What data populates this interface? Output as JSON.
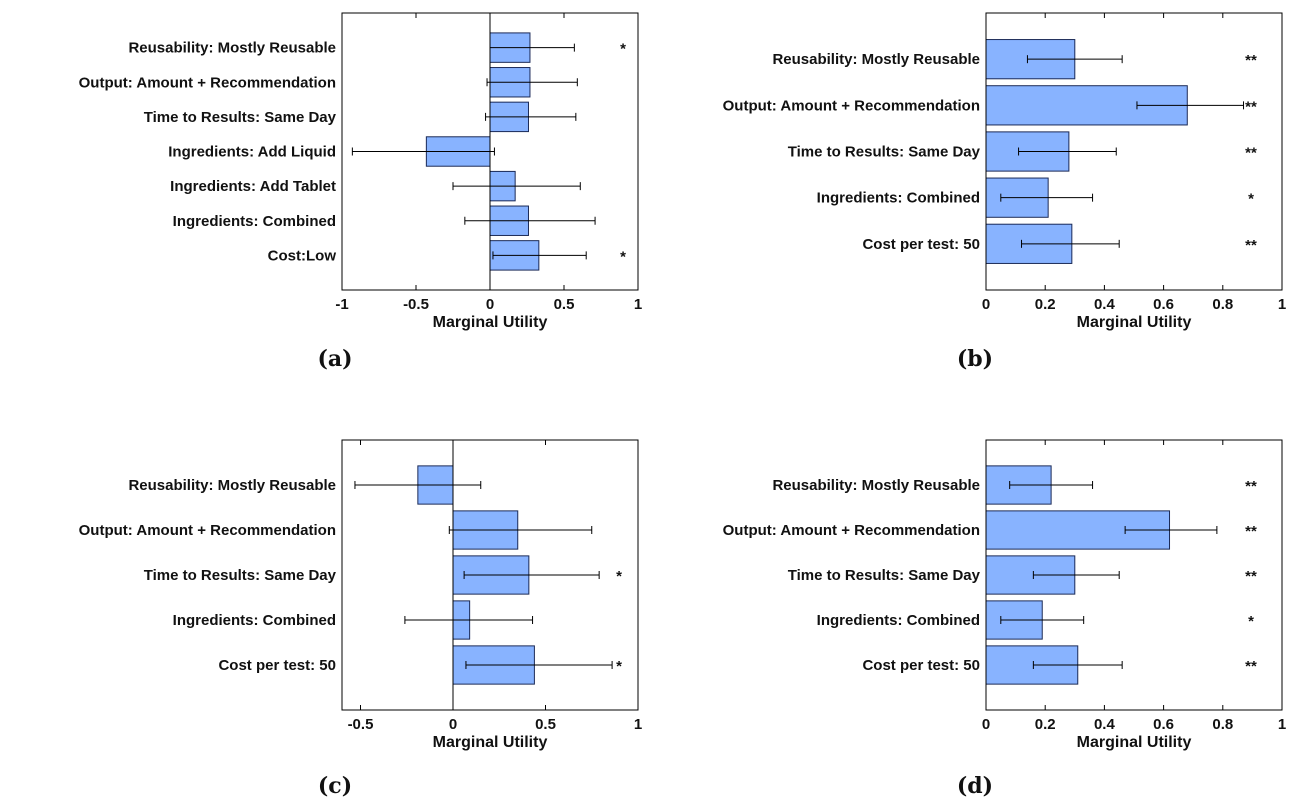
{
  "colors": {
    "bar_fill": "#88b3ff",
    "bar_stroke": "#1b2a57",
    "axis": "#000000",
    "errorbar": "#000000"
  },
  "chart_data": [
    {
      "id": "a",
      "type": "bar",
      "orientation": "horizontal",
      "caption": "(a)",
      "xlabel": "Marginal Utility",
      "xlim": [
        -1,
        1
      ],
      "xticks": [
        -1,
        -0.5,
        0,
        0.5,
        1
      ],
      "xtick_labels": [
        "-1",
        "-0.5",
        "0",
        "0.5",
        "1"
      ],
      "grid": false,
      "categories": [
        "Reusability: Mostly Reusable",
        "Output: Amount + Recommendation",
        "Time to Results: Same Day",
        "Ingredients: Add Liquid",
        "Ingredients: Add Tablet",
        "Ingredients: Combined",
        "Cost:Low"
      ],
      "values": [
        0.27,
        0.27,
        0.26,
        -0.43,
        0.17,
        0.26,
        0.33
      ],
      "error_low": [
        0.0,
        -0.02,
        -0.03,
        -0.93,
        -0.25,
        -0.17,
        0.02
      ],
      "error_high": [
        0.57,
        0.59,
        0.58,
        0.03,
        0.61,
        0.71,
        0.65
      ],
      "significance": [
        "*",
        "",
        "",
        "",
        "",
        "",
        "*"
      ]
    },
    {
      "id": "b",
      "type": "bar",
      "orientation": "horizontal",
      "caption": "(b)",
      "xlabel": "Marginal Utility",
      "xlim": [
        0,
        1
      ],
      "xticks": [
        0,
        0.2,
        0.4,
        0.6,
        0.8,
        1
      ],
      "xtick_labels": [
        "0",
        "0.2",
        "0.4",
        "0.6",
        "0.8",
        "1"
      ],
      "grid": false,
      "categories": [
        "Reusability: Mostly Reusable",
        "Output: Amount + Recommendation",
        "Time to Results: Same Day",
        "Ingredients: Combined",
        "Cost per test: 50"
      ],
      "values": [
        0.3,
        0.68,
        0.28,
        0.21,
        0.29
      ],
      "error_low": [
        0.14,
        0.51,
        0.11,
        0.05,
        0.12
      ],
      "error_high": [
        0.46,
        0.87,
        0.44,
        0.36,
        0.45
      ],
      "significance": [
        "**",
        "**",
        "**",
        "*",
        "**"
      ]
    },
    {
      "id": "c",
      "type": "bar",
      "orientation": "horizontal",
      "caption": "(c)",
      "xlabel": "Marginal Utility",
      "xlim": [
        -0.6,
        1
      ],
      "xticks": [
        -0.5,
        0,
        0.5,
        1
      ],
      "xtick_labels": [
        "-0.5",
        "0",
        "0.5",
        "1"
      ],
      "grid": false,
      "categories": [
        "Reusability: Mostly Reusable",
        "Output: Amount + Recommendation",
        "Time to Results: Same Day",
        "Ingredients: Combined",
        "Cost per test: 50"
      ],
      "values": [
        -0.19,
        0.35,
        0.41,
        0.09,
        0.44
      ],
      "error_low": [
        -0.53,
        -0.02,
        0.06,
        -0.26,
        0.07
      ],
      "error_high": [
        0.15,
        0.75,
        0.79,
        0.43,
        0.86
      ],
      "significance": [
        "",
        "",
        "*",
        "",
        "*"
      ]
    },
    {
      "id": "d",
      "type": "bar",
      "orientation": "horizontal",
      "caption": "(d)",
      "xlabel": "Marginal Utility",
      "xlim": [
        0,
        1
      ],
      "xticks": [
        0,
        0.2,
        0.4,
        0.6,
        0.8,
        1
      ],
      "xtick_labels": [
        "0",
        "0.2",
        "0.4",
        "0.6",
        "0.8",
        "1"
      ],
      "grid": false,
      "categories": [
        "Reusability: Mostly Reusable",
        "Output: Amount + Recommendation",
        "Time to Results: Same Day",
        "Ingredients: Combined",
        "Cost per test: 50"
      ],
      "values": [
        0.22,
        0.62,
        0.3,
        0.19,
        0.31
      ],
      "error_low": [
        0.08,
        0.47,
        0.16,
        0.05,
        0.16
      ],
      "error_high": [
        0.36,
        0.78,
        0.45,
        0.33,
        0.46
      ],
      "significance": [
        "**",
        "**",
        "**",
        "*",
        "**"
      ]
    }
  ]
}
